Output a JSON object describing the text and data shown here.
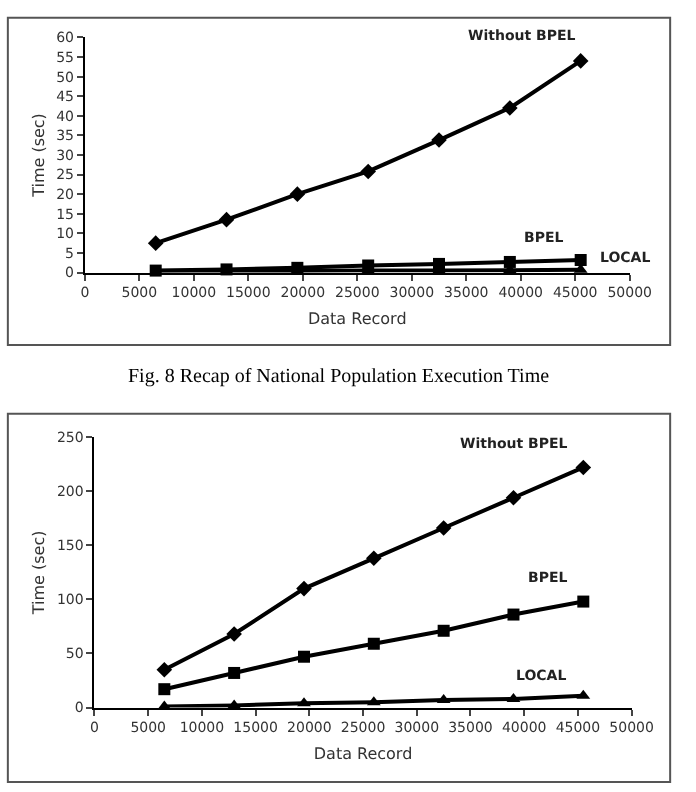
{
  "chart_data": [
    {
      "type": "line",
      "xlabel": "Data Record",
      "ylabel": "Time (sec)",
      "x": [
        6500,
        13000,
        19500,
        26000,
        32500,
        39000,
        45500
      ],
      "xlim": [
        0,
        50000
      ],
      "xticks": [
        0,
        5000,
        10000,
        15000,
        20000,
        25000,
        30000,
        35000,
        40000,
        45000,
        50000
      ],
      "ylim": [
        0,
        60
      ],
      "yticks": [
        0,
        5,
        10,
        15,
        20,
        25,
        30,
        35,
        40,
        45,
        50,
        55,
        60
      ],
      "legend": false,
      "annotations": [
        "Fig. 8 Recap of National Population Execution Time"
      ],
      "series": [
        {
          "name": "Without BPEL",
          "color": "#000000",
          "marker": "diamond",
          "values": [
            7.5,
            13.5,
            20,
            25.8,
            33.8,
            42,
            54
          ]
        },
        {
          "name": "BPEL",
          "color": "#000000",
          "marker": "square",
          "values": [
            0.5,
            0.8,
            1.2,
            1.8,
            2.2,
            2.7,
            3.2
          ]
        },
        {
          "name": "LOCAL",
          "color": "#000000",
          "marker": "triangle",
          "values": [
            0.2,
            0.3,
            0.4,
            0.5,
            0.5,
            0.6,
            0.7
          ]
        }
      ]
    },
    {
      "type": "line",
      "xlabel": "Data Record",
      "ylabel": "Time (sec)",
      "x": [
        6500,
        13000,
        19500,
        26000,
        32500,
        39000,
        45500
      ],
      "xlim": [
        0,
        50000
      ],
      "xticks": [
        0,
        5000,
        10000,
        15000,
        20000,
        25000,
        30000,
        35000,
        40000,
        45000,
        50000
      ],
      "ylim": [
        0,
        250
      ],
      "yticks": [
        0,
        50,
        100,
        150,
        200,
        250
      ],
      "legend": false,
      "series": [
        {
          "name": "Without BPEL",
          "color": "#000000",
          "marker": "diamond",
          "values": [
            35,
            68,
            110,
            138,
            166,
            194,
            222
          ]
        },
        {
          "name": "BPEL",
          "color": "#000000",
          "marker": "square",
          "values": [
            17,
            32,
            47,
            59,
            71,
            86,
            98
          ]
        },
        {
          "name": "LOCAL",
          "color": "#000000",
          "marker": "triangle",
          "values": [
            1,
            2,
            4,
            5,
            7,
            8,
            11
          ]
        }
      ]
    }
  ]
}
